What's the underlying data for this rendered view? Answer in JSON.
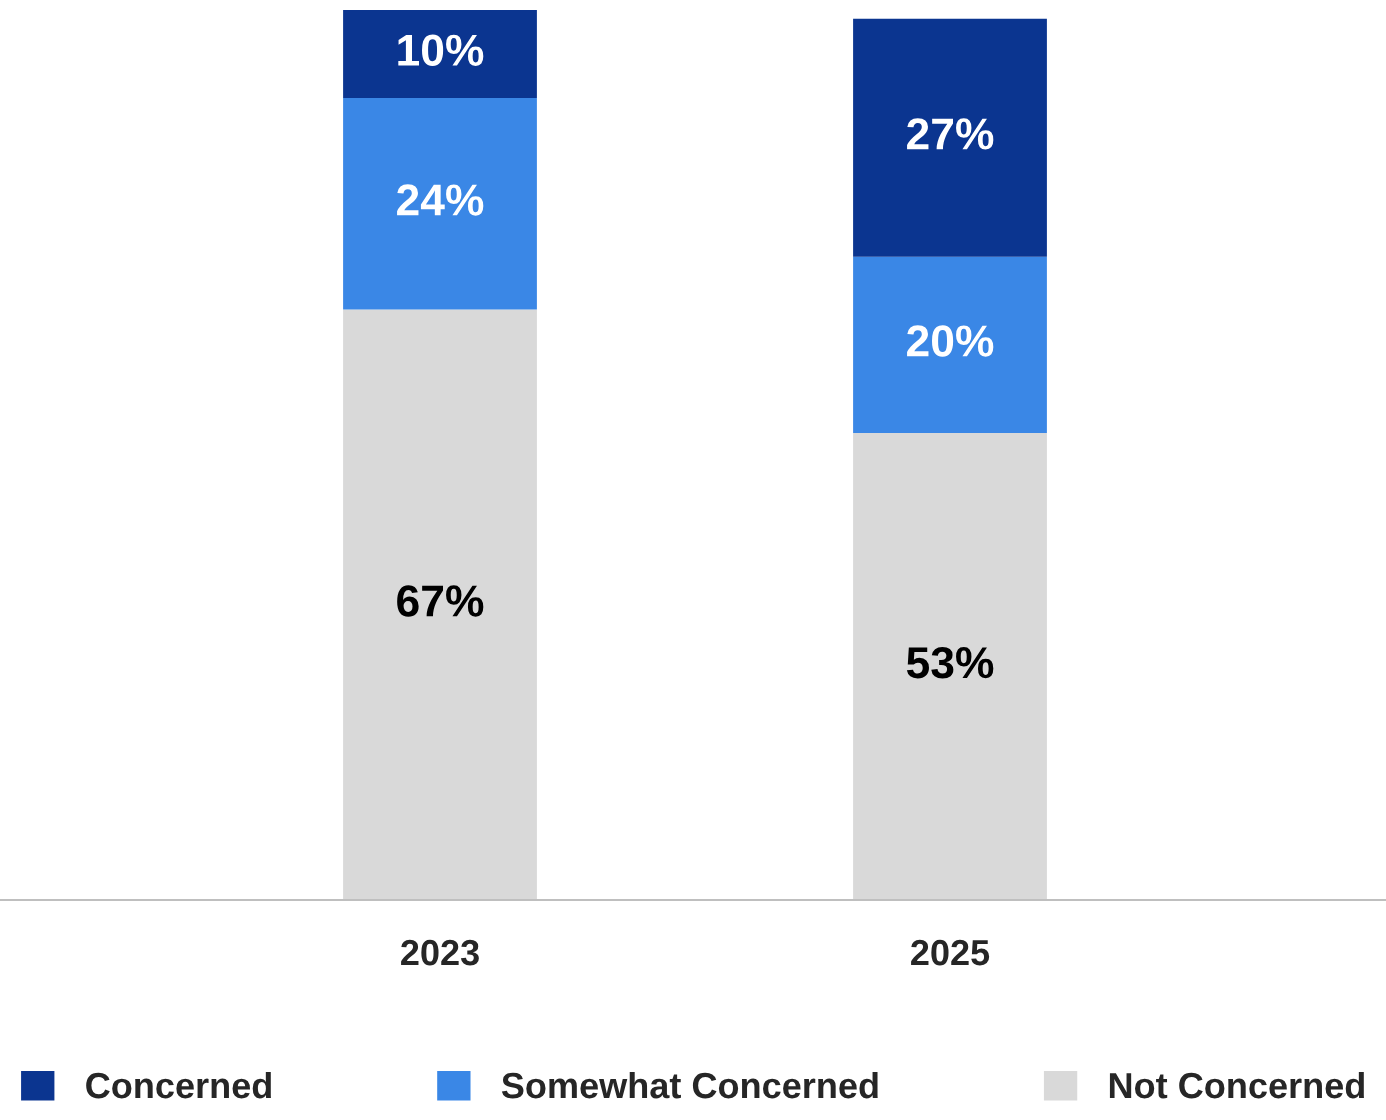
{
  "chart_data": {
    "type": "bar",
    "stacked": true,
    "categories": [
      "2023",
      "2025"
    ],
    "ylim": [
      0,
      101
    ],
    "legend": "bottom",
    "grid": false,
    "series": [
      {
        "name": "Not Concerned",
        "color": "#d9d9d9",
        "values": [
          67,
          53
        ],
        "value_labels": [
          "67%",
          "53%"
        ]
      },
      {
        "name": "Somewhat Concerned",
        "color": "#3a87e6",
        "values": [
          24,
          20
        ],
        "value_labels": [
          "24%",
          "20%"
        ]
      },
      {
        "name": "Concerned",
        "color": "#0b3590",
        "values": [
          10,
          27
        ],
        "value_labels": [
          "10%",
          "27%"
        ]
      }
    ]
  }
}
